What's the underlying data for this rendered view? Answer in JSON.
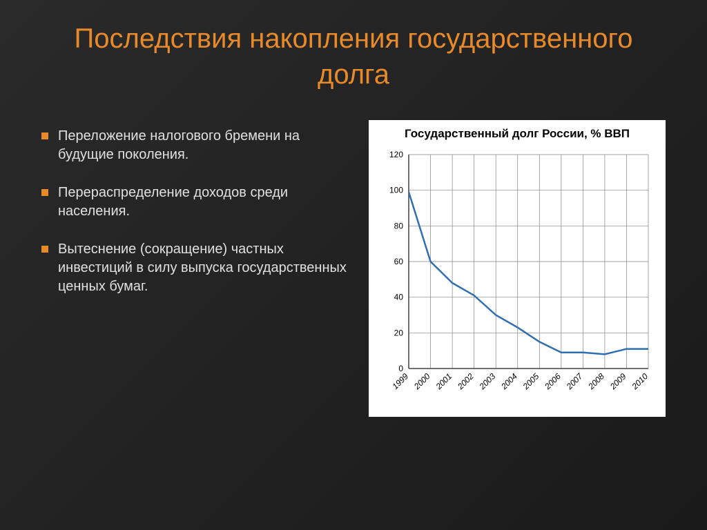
{
  "title": "Последствия накопления государственного долга",
  "title_color": "#e88a2a",
  "title_fontsize": 40,
  "bullets": [
    "Переложение налогового бремени на будущие поколения.",
    "Перераспределение доходов среди населения.",
    "Вытеснение (сокращение) частных инвестиций в силу выпуска государственных ценных бумаг."
  ],
  "bullet_color": "#e0e0e0",
  "bullet_marker_color": "#e88a2a",
  "bullet_fontsize": 20,
  "chart": {
    "type": "line",
    "title": "Государственный долг России, % ВВП",
    "title_fontsize": 17,
    "title_fontweight": "bold",
    "background_color": "#ffffff",
    "x_labels": [
      "1999",
      "2000",
      "2001",
      "2002",
      "2003",
      "2004",
      "2005",
      "2006",
      "2007",
      "2008",
      "2009",
      "2010"
    ],
    "x_label_fontsize": 12,
    "x_label_rotation": -45,
    "x_label_style": "italic",
    "ylim": [
      0,
      120
    ],
    "ytick_step": 20,
    "y_label_fontsize": 12,
    "line_color": "#2f6faf",
    "line_width": 2.5,
    "grid_color": "#808080",
    "axis_color": "#404040",
    "values": [
      99,
      60,
      48,
      41,
      30,
      23,
      15,
      9,
      9,
      8,
      11,
      11
    ]
  }
}
